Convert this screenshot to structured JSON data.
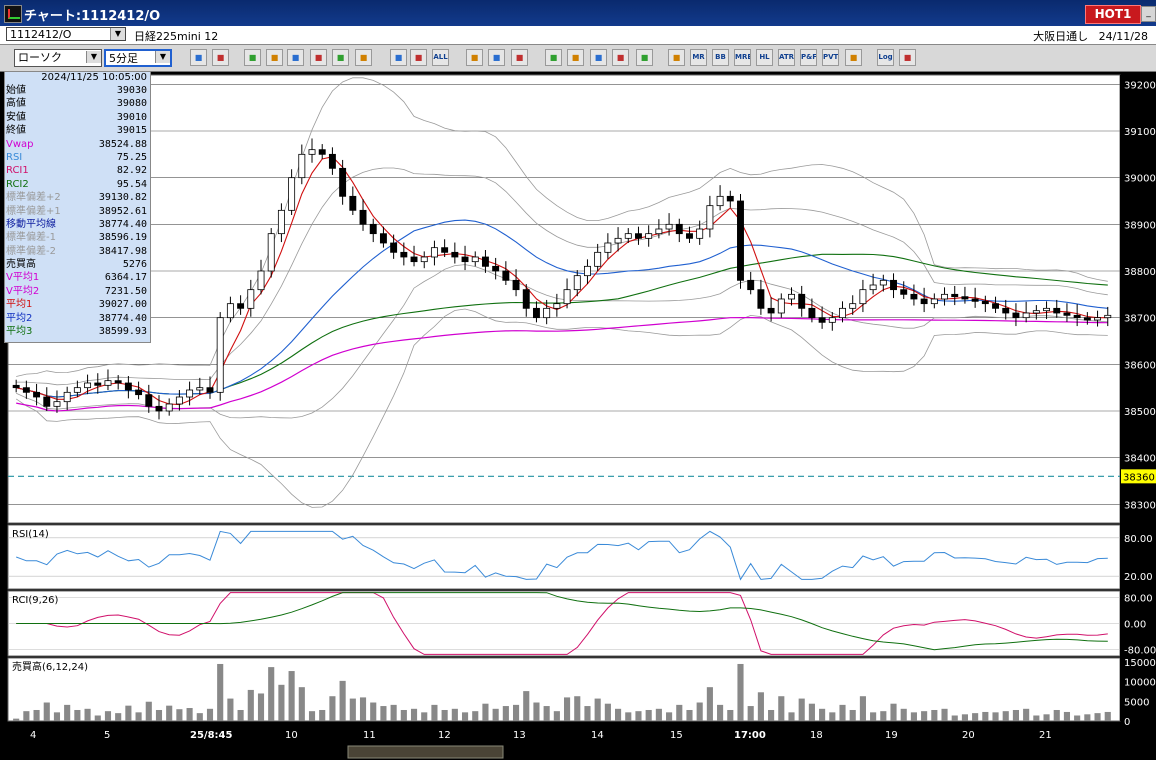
{
  "window": {
    "title": "チャート:1112412/O",
    "hot_label": "HOT1"
  },
  "infobar": {
    "symbol": "1112412/O",
    "instrument": "日経225mini 12",
    "session": "大阪日通し",
    "date": "24/11/28"
  },
  "toolbar": {
    "chart_type": "ローソク",
    "interval": "5分足",
    "buttons": [
      "search-icon",
      "crosshair-icon",
      "draw-icon",
      "pen-icon",
      "cursor-icon",
      "redo-icon",
      "list-icon",
      "trash-icon",
      "candle-icon",
      "bar-icon",
      "all-icon",
      "settings-icon",
      "wand-icon",
      "palette-icon",
      "save-icon",
      "zoom-icon",
      "chart-icon",
      "split-icon",
      "blank-icon",
      "grid-icon",
      "mr-icon",
      "bb-icon",
      "mre-icon",
      "hl-icon",
      "atr-icon",
      "pnf-icon",
      "pvt-icon",
      "window-icon",
      "log-icon",
      "export-icon"
    ],
    "text_buttons": {
      "all": "ALL",
      "mr": "MR",
      "bb": "BB",
      "mre": "MRE",
      "hl": "HL",
      "atr": "ATR",
      "pnf": "P&F",
      "pvt": "PVT",
      "log": "Log"
    }
  },
  "info_panel": {
    "datetime": "2024/11/25  10:05:00",
    "rows": [
      {
        "label": "始値",
        "value": "39030",
        "color": "#000000"
      },
      {
        "label": "高値",
        "value": "39080",
        "color": "#000000"
      },
      {
        "label": "安値",
        "value": "39010",
        "color": "#000000"
      },
      {
        "label": "終値",
        "value": "39015",
        "color": "#000000"
      },
      {
        "label": "Vwap",
        "value": "38524.88",
        "color": "#d000d0"
      },
      {
        "label": "RSI",
        "value": "75.25",
        "color": "#3a8ad8"
      },
      {
        "label": "RCI1",
        "value": "82.92",
        "color": "#d0106a"
      },
      {
        "label": "RCI2",
        "value": "95.54",
        "color": "#107010"
      },
      {
        "label": "標準偏差+2",
        "value": "39130.82",
        "color": "#9a9a9a"
      },
      {
        "label": "標準偏差+1",
        "value": "38952.61",
        "color": "#9a9a9a"
      },
      {
        "label": "移動平均線",
        "value": "38774.40",
        "color": "#1020a0"
      },
      {
        "label": "標準偏差-1",
        "value": "38596.19",
        "color": "#9a9a9a"
      },
      {
        "label": "標準偏差-2",
        "value": "38417.98",
        "color": "#9a9a9a"
      },
      {
        "label": "売買高",
        "value": "5276",
        "color": "#000000"
      },
      {
        "label": "V平均1",
        "value": "6364.17",
        "color": "#d000d0"
      },
      {
        "label": "V平均2",
        "value": "7231.50",
        "color": "#d000d0"
      },
      {
        "label": "平均1",
        "value": "39027.00",
        "color": "#d01010"
      },
      {
        "label": "平均2",
        "value": "38774.40",
        "color": "#1030c0"
      },
      {
        "label": "平均3",
        "value": "38599.93",
        "color": "#107010"
      }
    ]
  },
  "price_axis": {
    "ticks": [
      "39200",
      "39100",
      "39000",
      "38900",
      "38800",
      "38700",
      "38600",
      "38500",
      "38400",
      "38300"
    ],
    "current_price": "38360"
  },
  "rsi_panel": {
    "label": "RSI(14)",
    "ticks": [
      "80.00",
      "20.00"
    ]
  },
  "rci_panel": {
    "label": "RCI(9,26)",
    "ticks": [
      "80.00",
      "0.00",
      "-80.00"
    ]
  },
  "volume_panel": {
    "label": "売買高(6,12,24)",
    "ticks": [
      "15000",
      "10000",
      "5000",
      "0"
    ]
  },
  "time_axis": {
    "labels": [
      "4",
      "5",
      "25/8:45",
      "10",
      "11",
      "12",
      "13",
      "14",
      "15",
      "17:00",
      "18",
      "19",
      "20",
      "21"
    ]
  },
  "colors": {
    "background": "#000000",
    "chart_bg": "#ffffff",
    "candle_up": "#ffffff",
    "candle_down": "#000000",
    "ma_short": "#d01010",
    "ma_mid": "#2060d0",
    "ma_long": "#107010",
    "vwap": "#d000d0",
    "bands": "#9a9a9a",
    "current_price_bg": "#ffff00",
    "hot_bg": "#c8191e"
  },
  "chart_data": {
    "type": "candlestick",
    "note_unit": "price",
    "ylim": [
      38260,
      39220
    ],
    "close_series": [
      38550,
      38540,
      38530,
      38510,
      38520,
      38540,
      38550,
      38560,
      38555,
      38565,
      38560,
      38545,
      38535,
      38510,
      38500,
      38515,
      38530,
      38545,
      38550,
      38540,
      38700,
      38730,
      38720,
      38760,
      38800,
      38880,
      38930,
      39000,
      39050,
      39060,
      39050,
      39020,
      38960,
      38930,
      38900,
      38880,
      38860,
      38840,
      38830,
      38820,
      38830,
      38850,
      38840,
      38830,
      38820,
      38830,
      38810,
      38800,
      38780,
      38760,
      38720,
      38700,
      38720,
      38730,
      38760,
      38790,
      38810,
      38840,
      38860,
      38870,
      38880,
      38870,
      38880,
      38890,
      38900,
      38880,
      38870,
      38890,
      38940,
      38960,
      38950,
      38780,
      38760,
      38720,
      38710,
      38740,
      38750,
      38720,
      38700,
      38690,
      38700,
      38720,
      38730,
      38760,
      38770,
      38780,
      38760,
      38750,
      38740,
      38730,
      38740,
      38750,
      38745,
      38740,
      38735,
      38730,
      38720,
      38710,
      38700,
      38710,
      38715,
      38720,
      38710,
      38705,
      38700,
      38695,
      38700,
      38705
    ],
    "volume": {
      "max": 15000,
      "peaks_scale": "0-15000"
    }
  }
}
